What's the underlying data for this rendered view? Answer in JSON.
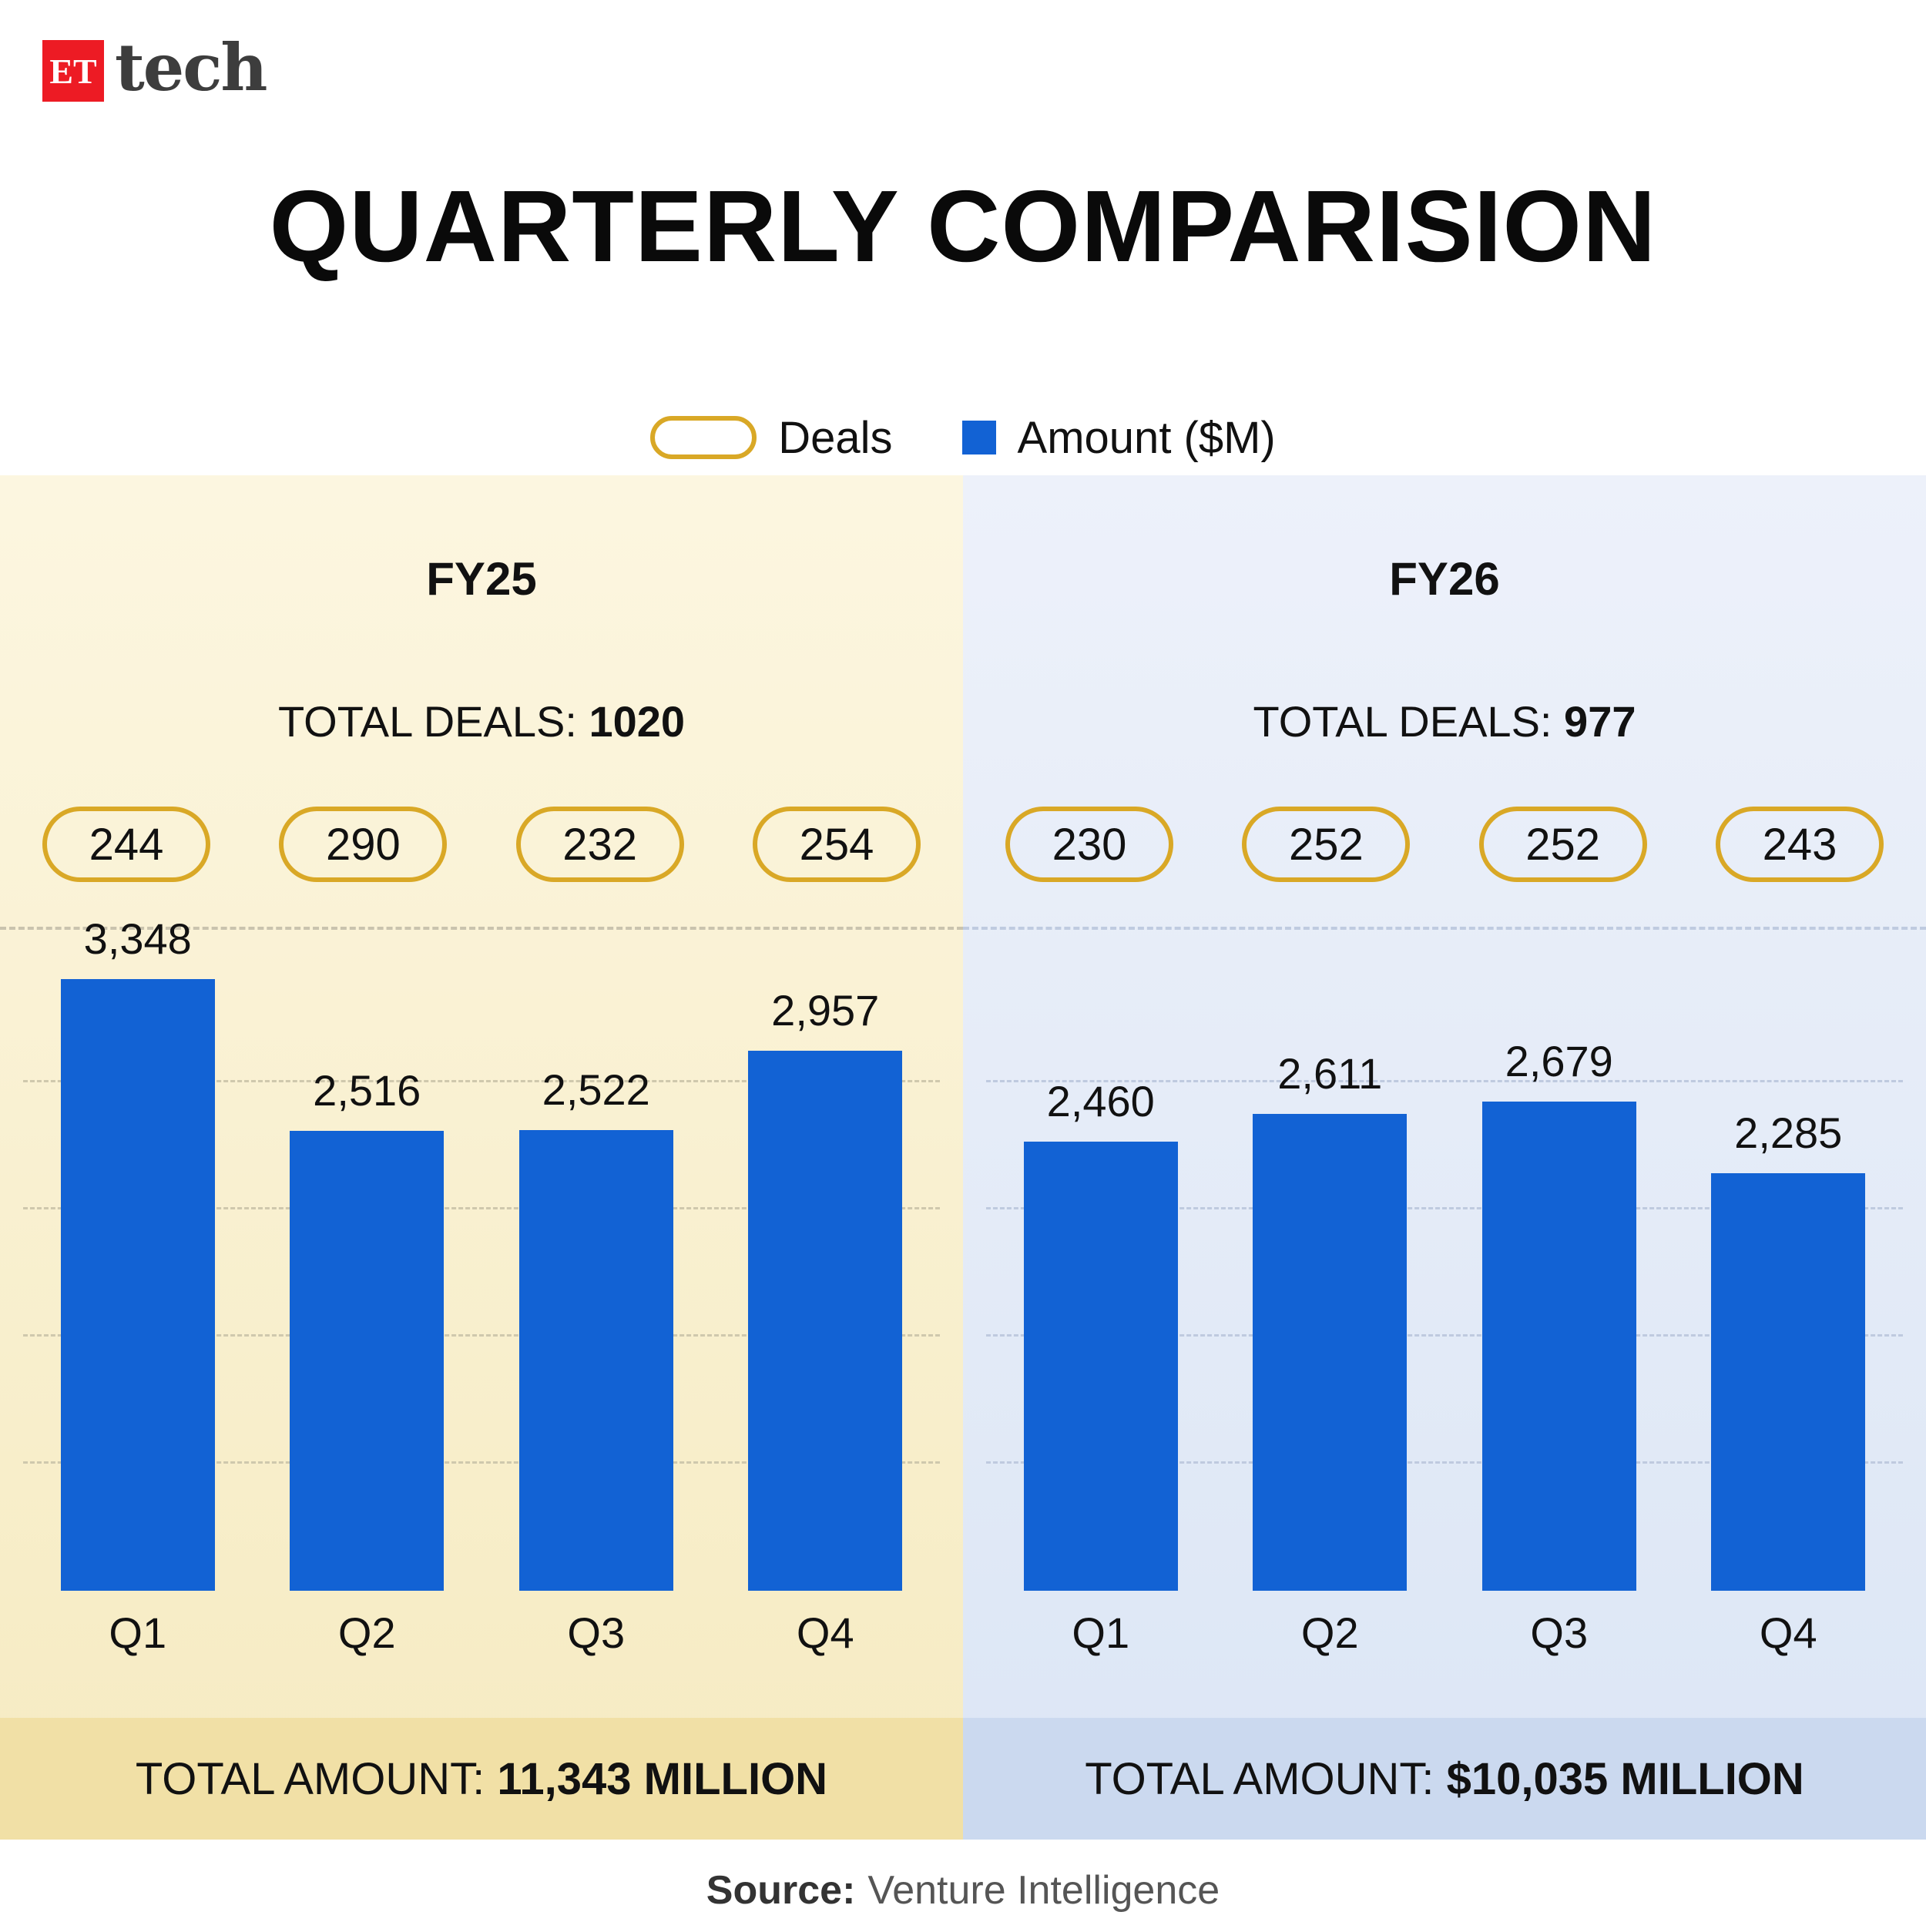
{
  "brand": {
    "logo_square": "ET",
    "logo_text": "tech"
  },
  "title": "QUARTERLY COMPARISION",
  "legend": {
    "deals_label": "Deals",
    "amount_label": "Amount ($M)"
  },
  "colors": {
    "bar": "#1262d4",
    "pill_border": "#d9a826",
    "fy25_bg_top": "#fcf6e0",
    "fy25_bg_bottom": "#f6ebc2",
    "fy25_footer_bg": "#f1e0a6",
    "fy26_bg_top": "#edf1fa",
    "fy26_bg_bottom": "#dce6f5",
    "fy26_footer_bg": "#cbd9ef"
  },
  "source": {
    "label": "Source:",
    "text": "Venture Intelligence"
  },
  "chart_data": [
    {
      "type": "bar",
      "panel": "FY25",
      "total_deals_label": "TOTAL DEALS: ",
      "total_deals": "1020",
      "categories": [
        "Q1",
        "Q2",
        "Q3",
        "Q4"
      ],
      "deals": [
        244,
        290,
        232,
        254
      ],
      "amounts": [
        3348,
        2516,
        2522,
        2957
      ],
      "amount_labels": [
        "3,348",
        "2,516",
        "2,522",
        "2,957"
      ],
      "total_amount_label": "TOTAL AMOUNT: ",
      "total_amount": "11,343 MILLION",
      "xlabel": "",
      "ylabel": "Amount ($M)",
      "ylim": [
        0,
        3500
      ],
      "grid": "dashed horizontal"
    },
    {
      "type": "bar",
      "panel": "FY26",
      "total_deals_label": "TOTAL DEALS: ",
      "total_deals": "977",
      "categories": [
        "Q1",
        "Q2",
        "Q3",
        "Q4"
      ],
      "deals": [
        230,
        252,
        252,
        243
      ],
      "amounts": [
        2460,
        2611,
        2679,
        2285
      ],
      "amount_labels": [
        "2,460",
        "2,611",
        "2,679",
        "2,285"
      ],
      "total_amount_label": "TOTAL AMOUNT: ",
      "total_amount": "$10,035 MILLION",
      "xlabel": "",
      "ylabel": "Amount ($M)",
      "ylim": [
        0,
        3500
      ],
      "grid": "dashed horizontal"
    }
  ]
}
